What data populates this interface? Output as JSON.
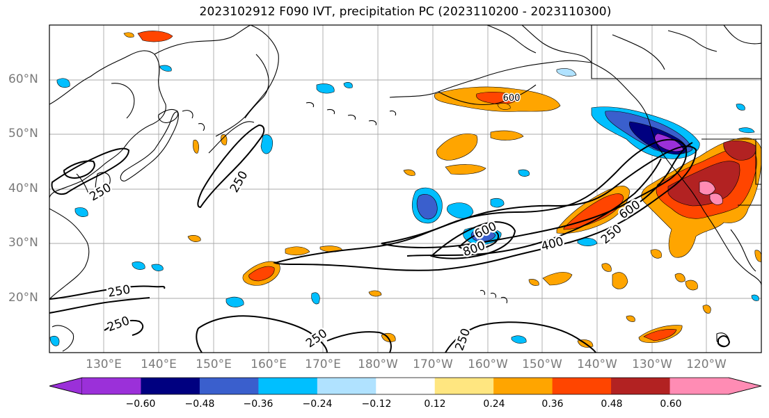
{
  "title": "2023102912 F090 IVT, precipitation PC (2023110200 - 2023110300)",
  "latitude_labels": [
    "60°N",
    "50°N",
    "40°N",
    "30°N",
    "20°N"
  ],
  "longitude_labels": [
    "130°E",
    "140°E",
    "150°E",
    "160°E",
    "170°E",
    "180°W",
    "170°W",
    "160°W",
    "150°W",
    "140°W",
    "130°W",
    "120°W"
  ],
  "ivt_contour_labels": [
    "250",
    "250",
    "250",
    "250",
    "250",
    "250",
    "400",
    "600",
    "800",
    "600",
    "250",
    "600"
  ],
  "colorbar": {
    "tick_labels": [
      "−0.60",
      "−0.48",
      "−0.36",
      "−0.24",
      "−0.12",
      "0.12",
      "0.24",
      "0.36",
      "0.48",
      "0.60"
    ],
    "colors": [
      "#9b30d9",
      "#000080",
      "#3a5fcd",
      "#00bfff",
      "#b0e2ff",
      "#ffffff",
      "#ffe680",
      "#ffa500",
      "#ff4500",
      "#b22222",
      "#ff8cb4"
    ]
  },
  "map_colors": {
    "coastline": "#000000",
    "grid": "#9a9a9a",
    "contour": "#000000"
  }
}
